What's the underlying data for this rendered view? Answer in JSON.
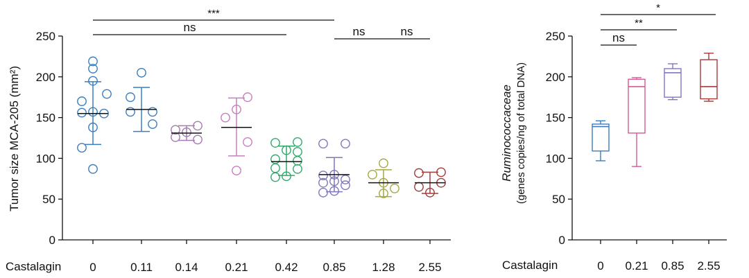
{
  "chart_data": [
    {
      "type": "scatter",
      "ylabel": "Tumor size MCA-205 (mm²)",
      "xlabel_prefix": "Castalagin",
      "ylim": [
        0,
        250
      ],
      "yticks": [
        0,
        50,
        100,
        150,
        200,
        250
      ],
      "categories": [
        "0",
        "0.11",
        "0.14",
        "0.21",
        "0.42",
        "0.85",
        "1.28",
        "2.55"
      ],
      "colors": [
        "#3a7dbf",
        "#3a7dbf",
        "#a57ab0",
        "#c67ec0",
        "#2fa86a",
        "#7d76c2",
        "#a6a83e",
        "#a43a3a"
      ],
      "groups": [
        {
          "category": "0",
          "points": [
            219,
            210,
            195,
            179,
            170,
            157,
            156,
            155,
            138,
            113,
            87
          ],
          "mean": 155,
          "sd_low": 117,
          "sd_high": 194
        },
        {
          "category": "0.11",
          "points": [
            205,
            175,
            157,
            157,
            142
          ],
          "mean": 160,
          "sd_low": 133,
          "sd_high": 187
        },
        {
          "category": "0.14",
          "points": [
            140,
            135,
            132,
            126,
            123
          ],
          "mean": 131,
          "sd_low": 122,
          "sd_high": 140
        },
        {
          "category": "0.21",
          "points": [
            175,
            160,
            150,
            120,
            85
          ],
          "mean": 138,
          "sd_low": 103,
          "sd_high": 174
        },
        {
          "category": "0.42",
          "points": [
            120,
            119,
            110,
            108,
            99,
            97,
            88,
            87,
            78,
            77
          ],
          "mean": 96,
          "sd_low": 79,
          "sd_high": 115
        },
        {
          "category": "0.85",
          "points": [
            118,
            118,
            80,
            79,
            74,
            72,
            70,
            67,
            60,
            58
          ],
          "mean": 80,
          "sd_low": 59,
          "sd_high": 101
        },
        {
          "category": "1.28",
          "points": [
            94,
            80,
            70,
            63,
            57
          ],
          "mean": 70,
          "sd_low": 53,
          "sd_high": 86
        },
        {
          "category": "2.55",
          "points": [
            83,
            82,
            70,
            65,
            58
          ],
          "mean": 70,
          "sd_low": 57,
          "sd_high": 83
        }
      ],
      "significance": [
        {
          "label": "***",
          "from": "0",
          "to": "0.85"
        },
        {
          "label": "ns",
          "from": "0",
          "to": "0.42"
        },
        {
          "label": "ns",
          "from": "0.85",
          "to": "1.28"
        },
        {
          "label": "ns",
          "from": "1.28",
          "to": "2.55"
        }
      ]
    },
    {
      "type": "box",
      "ylabel_italic": "Ruminococcaceae",
      "ylabel": "(genes copies/ng of total DNA)",
      "xlabel_prefix": "Castalagin",
      "ylim": [
        0,
        250
      ],
      "yticks": [
        0,
        50,
        100,
        150,
        200,
        250
      ],
      "categories": [
        "0",
        "0.21",
        "0.85",
        "2.55"
      ],
      "colors": [
        "#3a7dbf",
        "#d35a92",
        "#7d76c2",
        "#a43a3a"
      ],
      "boxes": [
        {
          "category": "0",
          "min": 97,
          "q1": 109,
          "median": 139,
          "q3": 142,
          "max": 146
        },
        {
          "category": "0.21",
          "min": 90,
          "q1": 131,
          "median": 188,
          "q3": 197,
          "max": 199
        },
        {
          "category": "0.85",
          "min": 172,
          "q1": 175,
          "median": 205,
          "q3": 210,
          "max": 216
        },
        {
          "category": "2.55",
          "min": 170,
          "q1": 173,
          "median": 188,
          "q3": 221,
          "max": 229
        }
      ],
      "significance": [
        {
          "label": "*",
          "from": "0",
          "to": "2.55"
        },
        {
          "label": "**",
          "from": "0",
          "to": "0.85"
        },
        {
          "label": "ns",
          "from": "0",
          "to": "0.21"
        }
      ]
    }
  ]
}
